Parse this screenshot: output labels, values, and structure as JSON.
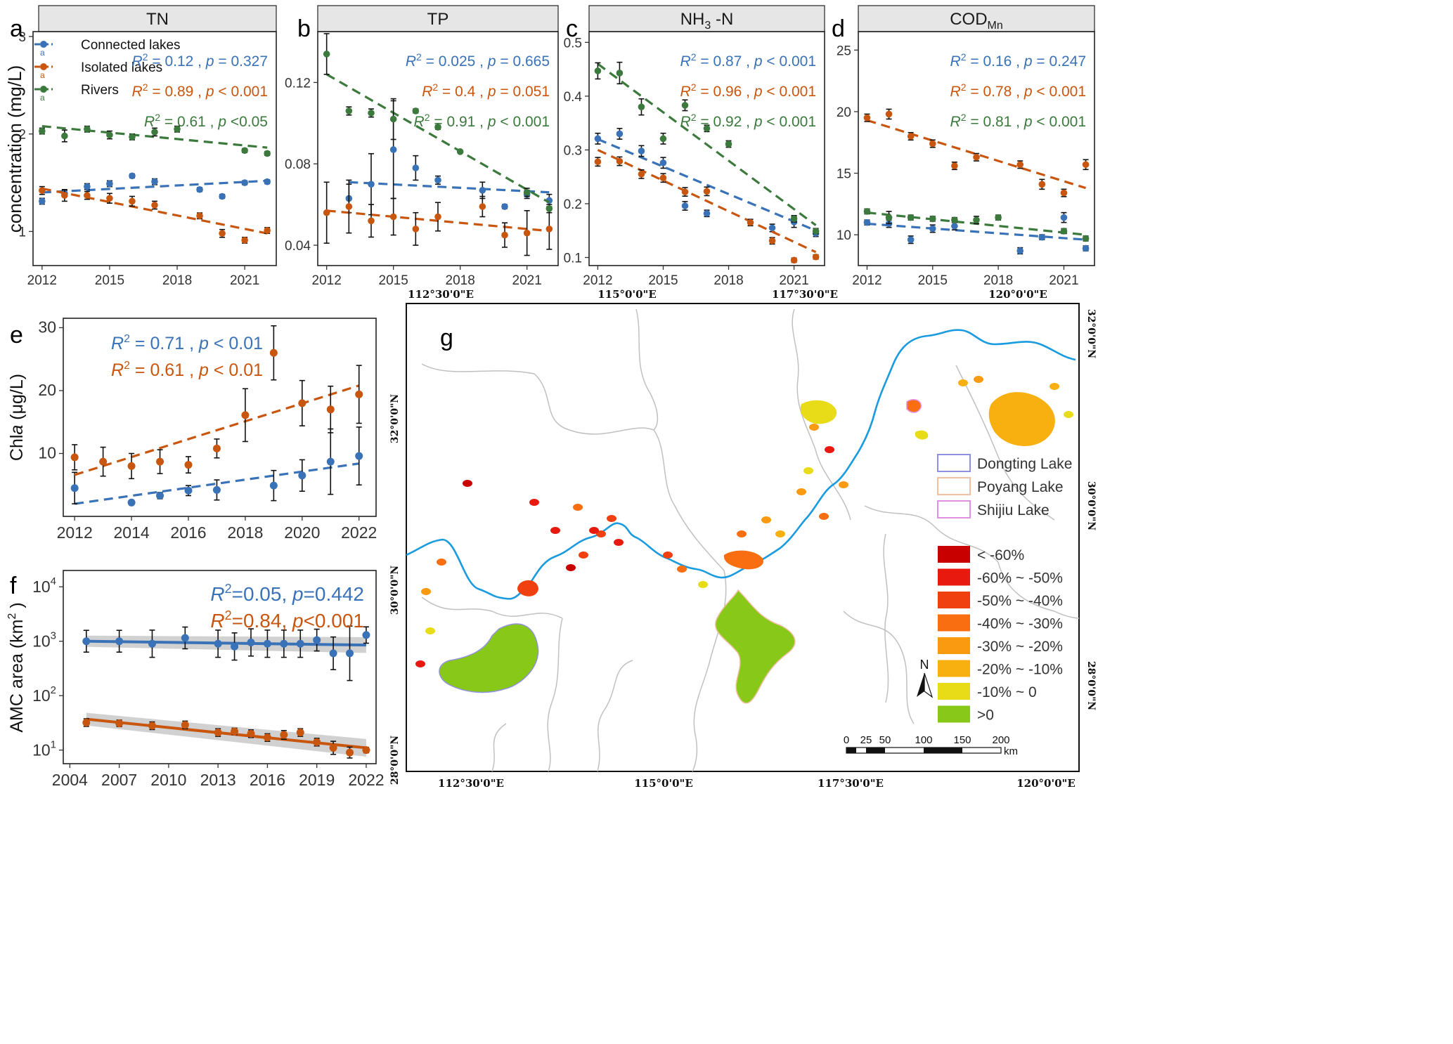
{
  "colors": {
    "connected": "#3a72b8",
    "isolated": "#c9560e",
    "rivers": "#3b7a3c",
    "river_line": "#1a9be0",
    "boundary": "#c0c0c0",
    "strip": "#e6e6e6"
  },
  "panels": [
    {
      "id": "a",
      "label": "a",
      "strip": "TN",
      "ylabel": "concentration (mg/L)",
      "xlim": [
        2011.6,
        2022.4
      ],
      "ylim": [
        0.65,
        3.05
      ],
      "xticks": [
        2012,
        2015,
        2018,
        2021
      ],
      "yticks": [
        1,
        2,
        3
      ],
      "legend": {
        "items": [
          "Connected lakes",
          "Isolated lakes",
          "Rivers"
        ],
        "glyph": "a"
      },
      "stats": [
        {
          "series": "connected",
          "r2": "0.12",
          "p": "p = 0.327"
        },
        {
          "series": "isolated",
          "r2": "0.89",
          "p": "p < 0.001"
        },
        {
          "series": "rivers",
          "r2": "0.61",
          "p": "p <0.05"
        }
      ]
    },
    {
      "id": "b",
      "label": "b",
      "strip": "TP",
      "xlim": [
        2011.6,
        2022.4
      ],
      "ylim": [
        0.03,
        0.145
      ],
      "xticks": [
        2012,
        2015,
        2018,
        2021
      ],
      "yticks": [
        0.04,
        0.08,
        0.12
      ],
      "ytick_labels": [
        "0.04",
        "0.08",
        "0.12"
      ],
      "stats": [
        {
          "series": "connected",
          "r2": "0.025",
          "p": "p = 0.665"
        },
        {
          "series": "isolated",
          "r2": "0.4",
          "p": "p = 0.051"
        },
        {
          "series": "rivers",
          "r2": "0.91",
          "p": "p < 0.001"
        }
      ]
    },
    {
      "id": "c",
      "label": "c",
      "strip": "NH",
      "strip_sub": "3",
      "strip_tail": " -N",
      "xlim": [
        2011.6,
        2022.4
      ],
      "ylim": [
        0.085,
        0.52
      ],
      "xticks": [
        2012,
        2015,
        2018,
        2021
      ],
      "yticks": [
        0.1,
        0.2,
        0.3,
        0.4,
        0.5
      ],
      "ytick_labels": [
        "0.1",
        "0.2",
        "0.3",
        "0.4",
        "0.5"
      ],
      "stats": [
        {
          "series": "connected",
          "r2": "0.87",
          "p": "p < 0.001"
        },
        {
          "series": "isolated",
          "r2": "0.96",
          "p": "p < 0.001"
        },
        {
          "series": "rivers",
          "r2": "0.92",
          "p": "p < 0.001"
        }
      ]
    },
    {
      "id": "d",
      "label": "d",
      "strip": "COD",
      "strip_sub": "Mn",
      "strip_tail": "",
      "xlim": [
        2011.6,
        2022.4
      ],
      "ylim": [
        7.5,
        26.5
      ],
      "xticks": [
        2012,
        2015,
        2018,
        2021
      ],
      "yticks": [
        10,
        15,
        20,
        25
      ],
      "stats": [
        {
          "series": "connected",
          "r2": "0.16",
          "p": "p = 0.247"
        },
        {
          "series": "isolated",
          "r2": "0.78",
          "p": "p < 0.001"
        },
        {
          "series": "rivers",
          "r2": "0.81",
          "p": "p < 0.001"
        }
      ]
    },
    {
      "id": "e",
      "label": "e",
      "ylabel": "Chla (μg/L)",
      "ylabel_italic": "a",
      "ylabel_pre": "Chl",
      "ylabel_post": " (μg/L)",
      "xlim": [
        2011.6,
        2022.6
      ],
      "ylim": [
        0,
        31.5
      ],
      "xticks": [
        2012,
        2014,
        2016,
        2018,
        2020,
        2022
      ],
      "yticks": [
        10,
        20,
        30
      ],
      "stats": [
        {
          "series": "connected",
          "r2": "0.71",
          "p": "p < 0.01"
        },
        {
          "series": "isolated",
          "r2": "0.61",
          "p": "p < 0.01"
        }
      ]
    },
    {
      "id": "f",
      "label": "f",
      "ylabel_pre": "AMC area (km",
      "ylabel_sup": "2",
      "ylabel_post": " )",
      "xlim": [
        2003.6,
        2022.6
      ],
      "ylog": true,
      "ylim_log": [
        0.75,
        4.3
      ],
      "xticks": [
        2004,
        2007,
        2010,
        2013,
        2016,
        2019,
        2022
      ],
      "yticks": [
        1,
        2,
        3,
        4
      ],
      "stats": [
        {
          "series": "connected",
          "r2": "=0.05,",
          "p": "p=0.442"
        },
        {
          "series": "isolated",
          "r2": "=0.84,",
          "p": "p<0.001"
        }
      ]
    }
  ],
  "chart_data": [
    {
      "panel": "a",
      "type": "scatter",
      "title": "TN",
      "ylabel": "concentration (mg/L)",
      "series": [
        {
          "name": "Connected lakes",
          "x": [
            2012,
            2013,
            2014,
            2015,
            2016,
            2017,
            2019,
            2020,
            2021,
            2022
          ],
          "y": [
            1.31,
            1.39,
            1.46,
            1.49,
            1.57,
            1.51,
            1.43,
            1.36,
            1.5,
            1.51
          ],
          "err": [
            0.03,
            0.03,
            0.03,
            0.03,
            0.02,
            0.03,
            0.02,
            0.02,
            0.02,
            0.02
          ],
          "trend": [
            1.4,
            1.52
          ]
        },
        {
          "name": "Isolated lakes",
          "x": [
            2012,
            2013,
            2014,
            2015,
            2016,
            2017,
            2019,
            2020,
            2021,
            2022
          ],
          "y": [
            1.42,
            1.37,
            1.37,
            1.34,
            1.31,
            1.27,
            1.16,
            0.98,
            0.91,
            1.01
          ],
          "err": [
            0.04,
            0.06,
            0.04,
            0.05,
            0.05,
            0.04,
            0.03,
            0.04,
            0.03,
            0.03
          ],
          "trend": [
            1.44,
            0.98
          ]
        },
        {
          "name": "Rivers",
          "x": [
            2012,
            2013,
            2014,
            2015,
            2016,
            2017,
            2018,
            2021,
            2022
          ],
          "y": [
            2.03,
            1.98,
            2.05,
            1.99,
            1.97,
            2.02,
            2.05,
            1.83,
            1.8
          ],
          "err": [
            0.03,
            0.06,
            0.03,
            0.04,
            0.03,
            0.04,
            0.03,
            0.02,
            0.02
          ],
          "trend": [
            2.08,
            1.86
          ]
        }
      ]
    },
    {
      "panel": "b",
      "type": "scatter",
      "title": "TP",
      "series": [
        {
          "name": "Connected lakes",
          "x": [
            2013,
            2014,
            2015,
            2016,
            2017,
            2019,
            2020,
            2021,
            2022
          ],
          "y": [
            0.063,
            0.07,
            0.087,
            0.078,
            0.072,
            0.067,
            0.059,
            0.065,
            0.062
          ],
          "err": [
            0.007,
            0.015,
            0.024,
            0.006,
            0.002,
            0.004,
            0.001,
            0.002,
            0.003
          ],
          "trend": [
            0.071,
            0.066
          ]
        },
        {
          "name": "Isolated lakes",
          "x": [
            2012,
            2013,
            2014,
            2015,
            2016,
            2017,
            2019,
            2020,
            2021,
            2022
          ],
          "y": [
            0.056,
            0.059,
            0.052,
            0.054,
            0.048,
            0.054,
            0.059,
            0.045,
            0.046,
            0.048
          ],
          "err": [
            0.015,
            0.013,
            0.008,
            0.009,
            0.008,
            0.007,
            0.005,
            0.006,
            0.011,
            0.01
          ],
          "trend": [
            0.057,
            0.047
          ]
        },
        {
          "name": "Rivers",
          "x": [
            2012,
            2013,
            2014,
            2015,
            2016,
            2017,
            2018,
            2021,
            2022
          ],
          "y": [
            0.134,
            0.106,
            0.105,
            0.102,
            0.106,
            0.098,
            0.086,
            0.066,
            0.058
          ],
          "err": [
            0.01,
            0.002,
            0.002,
            0.01,
            0.001,
            0.001,
            0.0005,
            0.002,
            0.002
          ],
          "trend": [
            0.124,
            0.061
          ]
        }
      ]
    },
    {
      "panel": "c",
      "type": "scatter",
      "title": "NH3 -N",
      "series": [
        {
          "name": "Connected lakes",
          "x": [
            2012,
            2013,
            2014,
            2015,
            2016,
            2017,
            2020,
            2021,
            2022
          ],
          "y": [
            0.321,
            0.33,
            0.298,
            0.276,
            0.196,
            0.182,
            0.155,
            0.166,
            0.145
          ],
          "err": [
            0.01,
            0.01,
            0.01,
            0.01,
            0.008,
            0.006,
            0.007,
            0.01,
            0.006
          ],
          "trend": [
            0.32,
            0.15
          ]
        },
        {
          "name": "Isolated lakes",
          "x": [
            2012,
            2013,
            2014,
            2015,
            2016,
            2017,
            2019,
            2020,
            2021,
            2022
          ],
          "y": [
            0.278,
            0.279,
            0.255,
            0.248,
            0.222,
            0.223,
            0.165,
            0.131,
            0.095,
            0.101
          ],
          "err": [
            0.008,
            0.008,
            0.008,
            0.008,
            0.008,
            0.008,
            0.006,
            0.006,
            0.004,
            0.004
          ],
          "trend": [
            0.3,
            0.11
          ]
        },
        {
          "name": "Rivers",
          "x": [
            2012,
            2013,
            2014,
            2015,
            2016,
            2017,
            2018,
            2021,
            2022
          ],
          "y": [
            0.447,
            0.443,
            0.38,
            0.321,
            0.383,
            0.34,
            0.311,
            0.172,
            0.149
          ],
          "err": [
            0.015,
            0.02,
            0.015,
            0.01,
            0.01,
            0.006,
            0.006,
            0.006,
            0.005
          ],
          "trend": [
            0.46,
            0.16
          ]
        }
      ]
    },
    {
      "panel": "d",
      "type": "scatter",
      "title": "CODMn",
      "series": [
        {
          "name": "Connected lakes",
          "x": [
            2012,
            2013,
            2014,
            2015,
            2016,
            2019,
            2020,
            2021,
            2022
          ],
          "y": [
            11.0,
            10.9,
            9.6,
            10.5,
            10.7,
            8.7,
            9.8,
            11.4,
            8.9
          ],
          "err": [
            0.2,
            0.3,
            0.3,
            0.3,
            0.3,
            0.25,
            0.2,
            0.4,
            0.2
          ],
          "trend": [
            10.9,
            9.6
          ]
        },
        {
          "name": "Isolated lakes",
          "x": [
            2012,
            2013,
            2014,
            2015,
            2016,
            2017,
            2019,
            2020,
            2021,
            2022
          ],
          "y": [
            19.5,
            19.8,
            18.0,
            17.4,
            15.6,
            16.3,
            15.7,
            14.1,
            13.4,
            15.7
          ],
          "err": [
            0.3,
            0.4,
            0.3,
            0.3,
            0.3,
            0.3,
            0.3,
            0.4,
            0.3,
            0.4
          ],
          "trend": [
            19.3,
            13.8
          ]
        },
        {
          "name": "Rivers",
          "x": [
            2012,
            2013,
            2014,
            2015,
            2016,
            2017,
            2018,
            2021,
            2022
          ],
          "y": [
            11.9,
            11.4,
            11.4,
            11.3,
            11.2,
            11.2,
            11.4,
            10.3,
            9.7
          ],
          "err": [
            0.2,
            0.5,
            0.2,
            0.2,
            0.2,
            0.3,
            0.2,
            0.2,
            0.2
          ],
          "trend": [
            11.8,
            10.0
          ]
        }
      ]
    },
    {
      "panel": "e",
      "type": "scatter",
      "ylabel": "Chla (μg/L)",
      "series": [
        {
          "name": "connected",
          "x": [
            2012,
            2014,
            2015,
            2016,
            2017,
            2019,
            2020,
            2021,
            2022
          ],
          "y": [
            4.5,
            2.2,
            3.3,
            4.1,
            4.2,
            4.9,
            6.5,
            8.7,
            9.6
          ],
          "err": [
            2.5,
            0.3,
            0.5,
            0.8,
            1.6,
            2.4,
            2.5,
            5.2,
            4.6
          ],
          "trend": [
            2.0,
            8.4
          ]
        },
        {
          "name": "isolated",
          "x": [
            2012,
            2013,
            2014,
            2015,
            2016,
            2017,
            2018,
            2019,
            2020,
            2021,
            2022
          ],
          "y": [
            9.4,
            8.7,
            8.0,
            8.7,
            8.2,
            10.8,
            16.1,
            26.0,
            18.0,
            17.0,
            19.4
          ],
          "err": [
            2.0,
            2.3,
            2.0,
            1.9,
            1.3,
            1.5,
            4.2,
            4.3,
            3.6,
            3.7,
            4.6
          ],
          "trend": [
            6.6,
            20.8
          ]
        }
      ]
    },
    {
      "panel": "f",
      "type": "scatter",
      "ylabel": "AMC area (km2 )",
      "yscale": "log",
      "series": [
        {
          "name": "connected",
          "x": [
            2005,
            2007,
            2009,
            2011,
            2013,
            2014,
            2015,
            2016,
            2017,
            2018,
            2019,
            2020,
            2021,
            2022
          ],
          "y": [
            1000,
            1000,
            900,
            1150,
            900,
            800,
            950,
            900,
            900,
            900,
            1050,
            600,
            600,
            1300
          ],
          "err_log": [
            0.2,
            0.2,
            0.25,
            0.2,
            0.25,
            0.25,
            0.25,
            0.25,
            0.25,
            0.25,
            0.2,
            0.3,
            0.5,
            0.15
          ],
          "trend": [
            1000,
            850
          ]
        },
        {
          "name": "isolated",
          "x": [
            2005,
            2007,
            2009,
            2011,
            2013,
            2014,
            2015,
            2016,
            2017,
            2018,
            2019,
            2020,
            2021,
            2022
          ],
          "y": [
            32,
            31,
            28,
            29,
            21,
            22,
            20,
            17,
            19,
            21,
            14,
            11,
            9,
            10
          ],
          "err_log": [
            0.07,
            0.06,
            0.07,
            0.07,
            0.07,
            0.06,
            0.07,
            0.07,
            0.08,
            0.07,
            0.07,
            0.12,
            0.1,
            0.05
          ],
          "trend": [
            37,
            11
          ]
        }
      ]
    }
  ],
  "map": {
    "label": "g",
    "lon_labels": [
      "112°30'0\"E",
      "115°0'0\"E",
      "117°30'0\"E",
      "120°0'0\"E"
    ],
    "lat_labels": [
      "28°0'0\"N",
      "30°0'0\"N",
      "32°0'0\"N"
    ],
    "north": "N",
    "legend_lakes": [
      "Dongting Lake",
      "Poyang Lake",
      "Shijiu Lake"
    ],
    "legend_lake_colors": [
      "#9090e0",
      "#f0c0a0",
      "#e090e0"
    ],
    "change_classes": [
      {
        "label": "< -60%",
        "color": "#c80000"
      },
      {
        "label": "-60% ~ -50%",
        "color": "#e81a10"
      },
      {
        "label": "-50% ~ -40%",
        "color": "#f04010"
      },
      {
        "label": "-40% ~ -30%",
        "color": "#f86e10"
      },
      {
        "label": "-30% ~ -20%",
        "color": "#fa9a10"
      },
      {
        "label": "-20% ~ -10%",
        "color": "#f8b010"
      },
      {
        "label": "-10% ~ 0",
        "color": "#e8dc18"
      },
      {
        "label": ">0",
        "color": "#88c818"
      }
    ],
    "scale": {
      "ticks": [
        "0",
        "25",
        "50",
        "100",
        "150",
        "200"
      ],
      "unit": "km"
    }
  }
}
